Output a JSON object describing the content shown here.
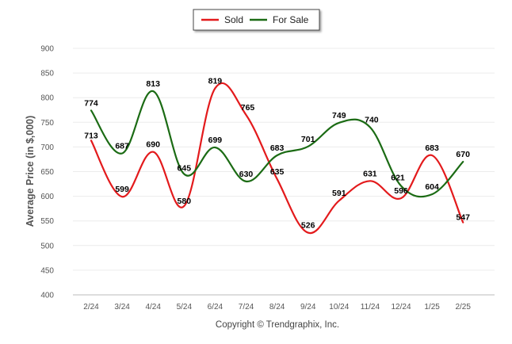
{
  "chart_data": {
    "type": "line",
    "title": "",
    "xlabel": "",
    "ylabel": "Average Price (in $,000)",
    "categories": [
      "2/24",
      "3/24",
      "4/24",
      "5/24",
      "6/24",
      "7/24",
      "8/24",
      "9/24",
      "10/24",
      "11/24",
      "12/24",
      "1/25",
      "2/25"
    ],
    "y_ticks": [
      "900",
      "850",
      "800",
      "750",
      "700",
      "650",
      "600",
      "550",
      "500",
      "450",
      "400"
    ],
    "ylim": [
      400,
      900
    ],
    "grid": true,
    "legend": "top-center",
    "series": [
      {
        "name": "Sold",
        "color": "#e31a1c",
        "values": [
          713,
          599,
          690,
          580,
          819,
          765,
          635,
          526,
          591,
          631,
          596,
          683,
          547
        ],
        "labels": [
          "713",
          "599",
          "690",
          "580",
          "819",
          "765",
          "635",
          "526",
          "591",
          "631",
          "596",
          "683",
          "547"
        ]
      },
      {
        "name": "For Sale",
        "color": "#1b6b14",
        "values": [
          774,
          687,
          813,
          645,
          699,
          630,
          683,
          701,
          749,
          740,
          621,
          604,
          670
        ],
        "labels": [
          "774",
          "687",
          "813",
          "645",
          "699",
          "630",
          "683",
          "701",
          "749",
          "740",
          "621",
          "604",
          "670"
        ]
      }
    ],
    "footer": "Copyright © Trendgraphix, Inc."
  }
}
